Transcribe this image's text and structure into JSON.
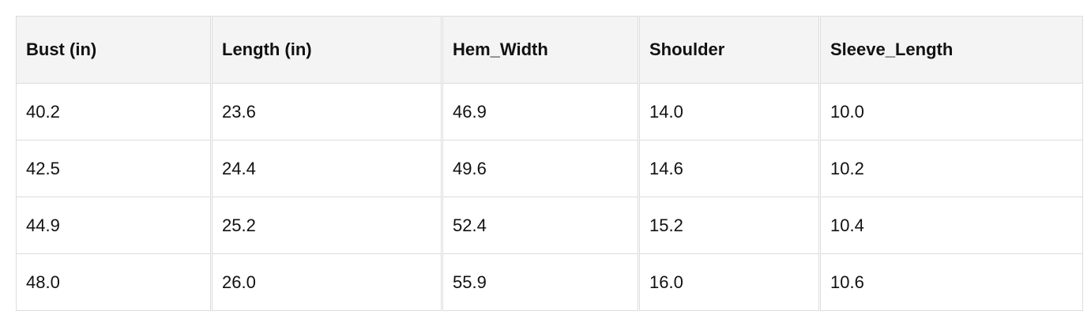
{
  "table": {
    "headers": [
      "Bust (in)",
      "Length (in)",
      "Hem_Width",
      "Shoulder",
      "Sleeve_Length"
    ],
    "rows": [
      [
        "40.2",
        "23.6",
        "46.9",
        "14.0",
        "10.0"
      ],
      [
        "42.5",
        "24.4",
        "49.6",
        "14.6",
        "10.2"
      ],
      [
        "44.9",
        "25.2",
        "52.4",
        "15.2",
        "10.4"
      ],
      [
        "48.0",
        "26.0",
        "55.9",
        "16.0",
        "10.6"
      ]
    ]
  }
}
